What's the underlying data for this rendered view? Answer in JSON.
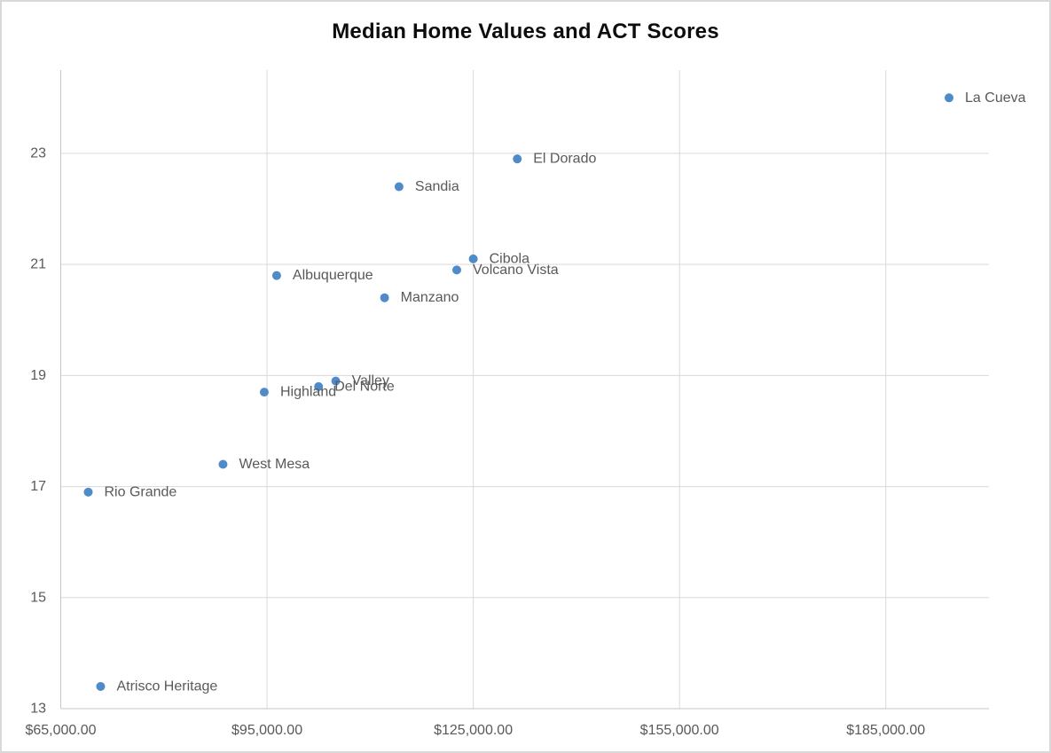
{
  "chart_data": {
    "type": "scatter",
    "title": "Median Home Values and ACT Scores",
    "xlabel": "",
    "ylabel": "",
    "xlim": [
      65000,
      200000
    ],
    "ylim": [
      13,
      24.5
    ],
    "grid": true,
    "legend": "none",
    "x_ticks": [
      {
        "value": 65000,
        "label": "$65,000.00"
      },
      {
        "value": 95000,
        "label": "$95,000.00"
      },
      {
        "value": 125000,
        "label": "$125,000.00"
      },
      {
        "value": 155000,
        "label": "$155,000.00"
      },
      {
        "value": 185000,
        "label": "$185,000.00"
      }
    ],
    "y_ticks": [
      {
        "value": 13,
        "label": "13"
      },
      {
        "value": 15,
        "label": "15"
      },
      {
        "value": 17,
        "label": "17"
      },
      {
        "value": 19,
        "label": "19"
      },
      {
        "value": 21,
        "label": "21"
      },
      {
        "value": 23,
        "label": "23"
      }
    ],
    "points": [
      {
        "label": "La Cueva",
        "x": 194200,
        "y": 24.0
      },
      {
        "label": "El Dorado",
        "x": 131400,
        "y": 22.9
      },
      {
        "label": "Sandia",
        "x": 114200,
        "y": 22.4
      },
      {
        "label": "Cibola",
        "x": 125000,
        "y": 21.1
      },
      {
        "label": "Volcano Vista",
        "x": 122600,
        "y": 20.9
      },
      {
        "label": "Albuquerque",
        "x": 96400,
        "y": 20.8
      },
      {
        "label": "Manzano",
        "x": 112100,
        "y": 20.4
      },
      {
        "label": "Valley",
        "x": 105000,
        "y": 18.9
      },
      {
        "label": "Del Norte",
        "x": 102500,
        "y": 18.8
      },
      {
        "label": "Highland",
        "x": 94600,
        "y": 18.7
      },
      {
        "label": "West Mesa",
        "x": 88600,
        "y": 17.4
      },
      {
        "label": "Rio Grande",
        "x": 69000,
        "y": 16.9
      },
      {
        "label": "Atrisco Heritage",
        "x": 70800,
        "y": 13.4
      }
    ],
    "colors": {
      "marker": "#4F8BC9",
      "point_label": "#595959",
      "tick_label": "#595959",
      "gridline": "#d9d9d9",
      "axis_line": "#c6c6c6",
      "title": "#0d0d0d",
      "background": "#ffffff",
      "border": "#d9d9d9"
    }
  }
}
